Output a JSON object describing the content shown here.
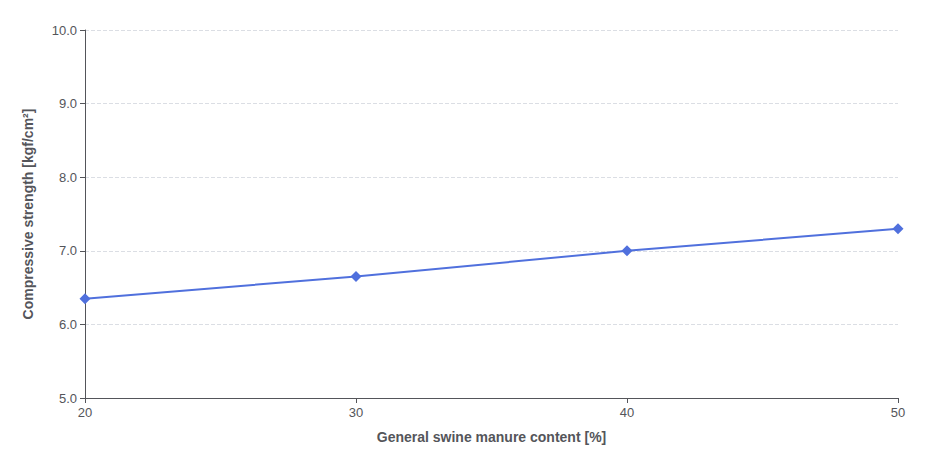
{
  "chart_data": {
    "type": "line",
    "x": [
      20,
      30,
      40,
      50
    ],
    "values": [
      6.35,
      6.65,
      7.0,
      7.3
    ],
    "xlabel": "General swine manure content [%]",
    "ylabel": "Compressive strength [kgf/cm²]",
    "xlim": [
      20,
      50
    ],
    "ylim": [
      5.0,
      10.0
    ],
    "xticks": [
      20,
      30,
      40,
      50
    ],
    "yticks": [
      {
        "value": 5.0,
        "label": "5.0"
      },
      {
        "value": 6.0,
        "label": "6.0"
      },
      {
        "value": 7.0,
        "label": "7.0"
      },
      {
        "value": 8.0,
        "label": "8.0"
      },
      {
        "value": 9.0,
        "label": "9.0"
      },
      {
        "value": 10.0,
        "label": "10.0"
      }
    ],
    "grid": true,
    "marker": "diamond"
  }
}
